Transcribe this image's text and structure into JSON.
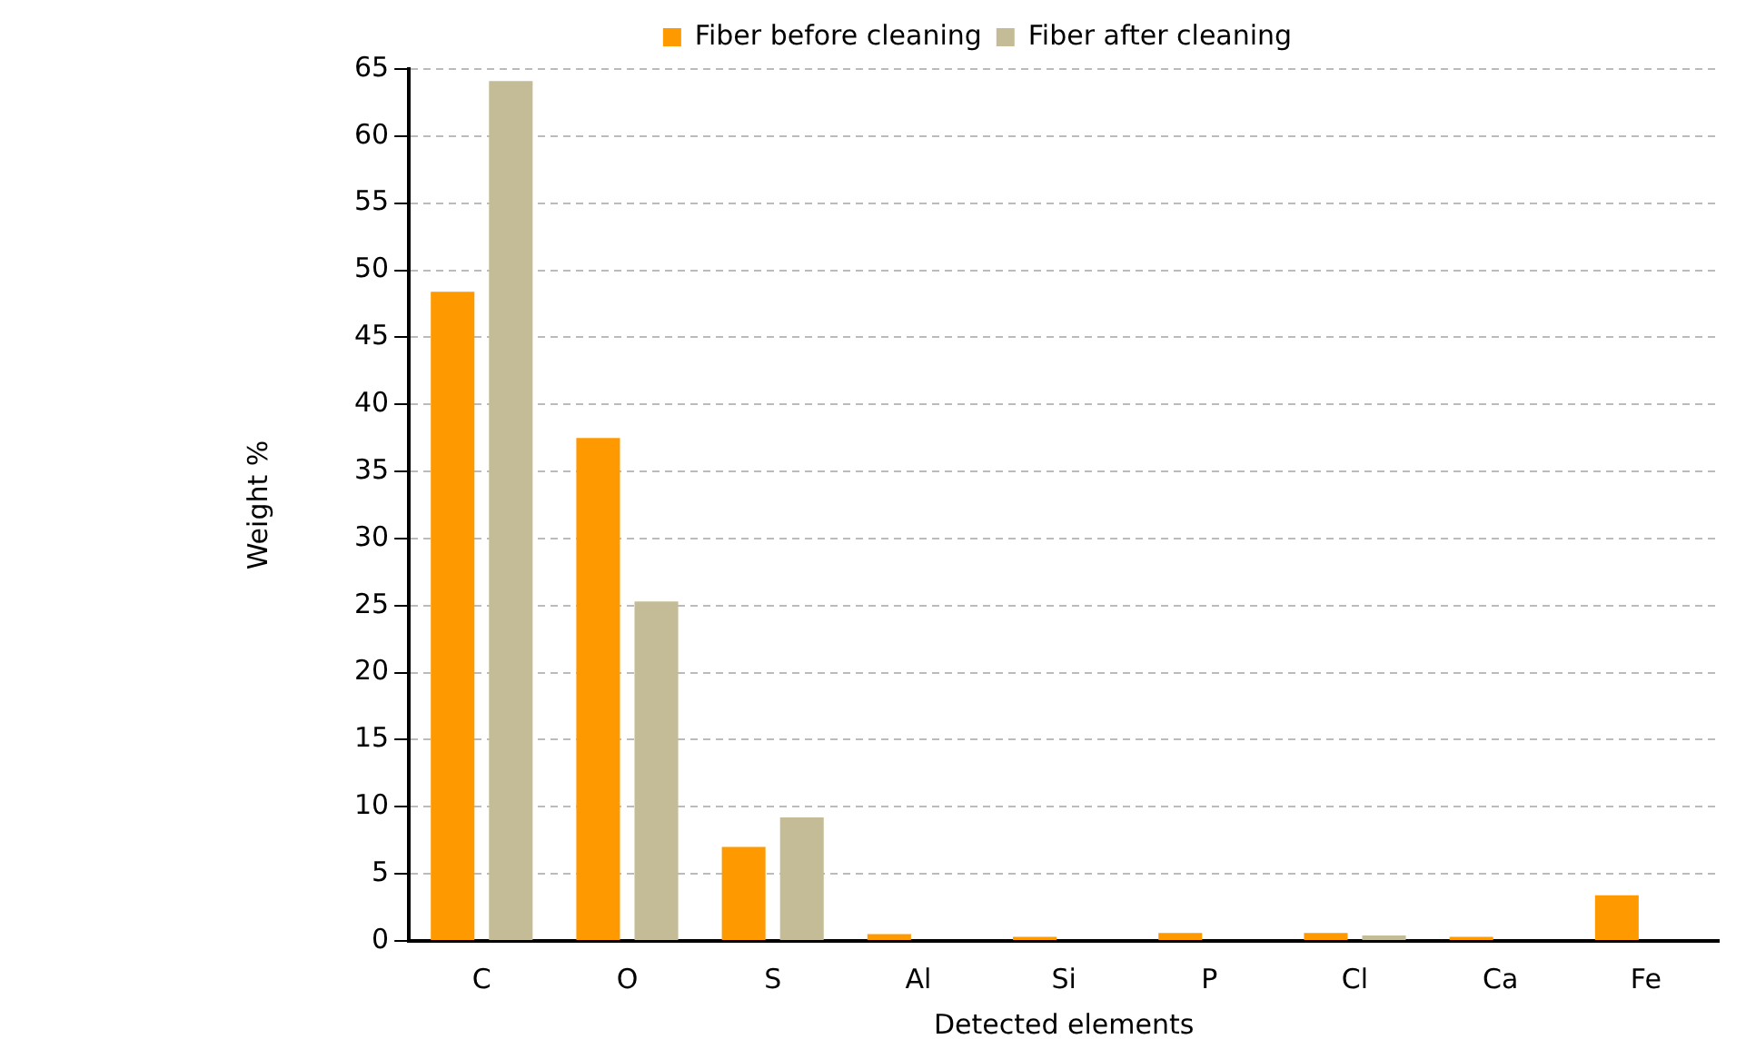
{
  "chart_data": {
    "type": "bar",
    "xlabel": "Detected elements",
    "ylabel": "Weight %",
    "categories": [
      "C",
      "O",
      "S",
      "Al",
      "Si",
      "P",
      "Cl",
      "Ca",
      "Fe"
    ],
    "series": [
      {
        "name": "Fiber before cleaning",
        "color": "#ff9900",
        "values": [
          48.4,
          37.5,
          7,
          0.5,
          0.3,
          0.6,
          0.6,
          0.3,
          3.4
        ]
      },
      {
        "name": "Fiber after cleaning",
        "color": "#c4bc96",
        "values": [
          64.1,
          25.3,
          9.2,
          0,
          0,
          0,
          0.4,
          0,
          0
        ]
      }
    ],
    "ylim": [
      0,
      65
    ],
    "yticks": [
      0,
      5,
      10,
      15,
      20,
      25,
      30,
      35,
      40,
      45,
      50,
      55,
      60,
      65
    ],
    "grid": "y",
    "legend": "top"
  }
}
